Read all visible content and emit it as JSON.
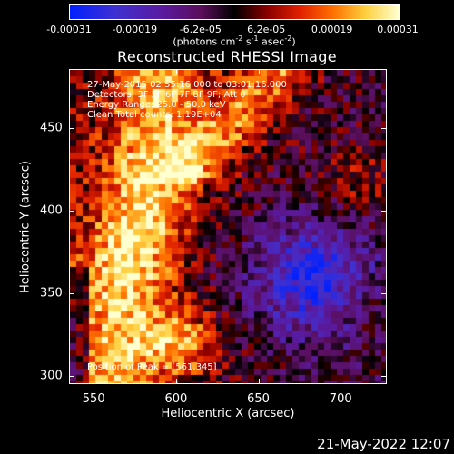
{
  "colorbar": {
    "ticks": [
      "-0.00031",
      "-0.00019",
      "-6.2e-05",
      "6.2e-05",
      "0.00019",
      "0.00031"
    ],
    "units_prefix": "(photons cm",
    "units_exp1": "-2",
    "units_mid": " s",
    "units_exp2": "-1",
    "units_mid2": " asec",
    "units_exp3": "-2",
    "units_suffix": ")"
  },
  "chart_data": {
    "type": "heatmap",
    "title": "Reconstructed RHESSI Image",
    "xlabel": "Heliocentric X (arcsec)",
    "ylabel": "Heliocentric Y (arcsec)",
    "xlim": [
      535,
      728
    ],
    "ylim": [
      295,
      486
    ],
    "xticks": [
      550,
      600,
      650,
      700
    ],
    "yticks": [
      300,
      350,
      400,
      450
    ],
    "color_range": [
      -0.00031,
      0.00031
    ],
    "peak_position": [
      561,
      345
    ]
  },
  "annotations": {
    "line1": "27-May-2015 02:55:16.000 to 03:01:16.000",
    "line2": "Detectors: 3F 5F 6F 7F 8F 9F; Att 0",
    "line3": "Energy Range: 25.0 - 50.0 keV",
    "line4": "Clean    Total counts: 1.19E+04",
    "peak": "Position of Peak = [561,345]"
  },
  "footer": {
    "timestamp": "21-May-2022 12:07"
  }
}
